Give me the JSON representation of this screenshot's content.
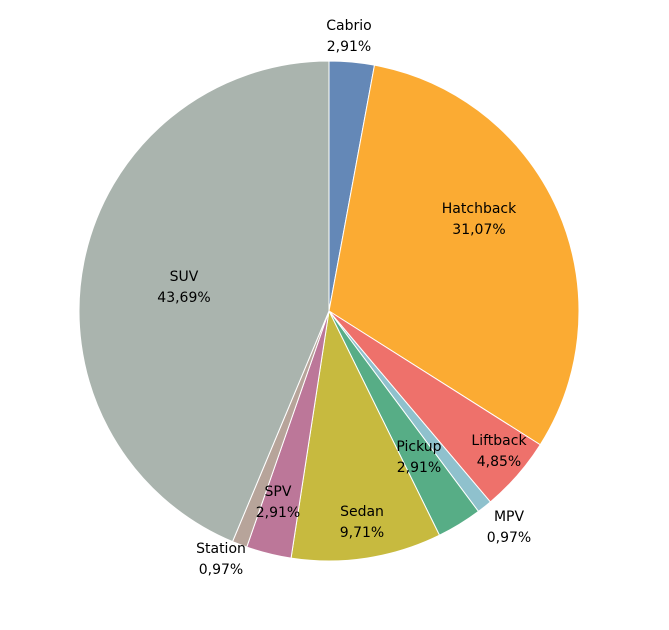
{
  "chart_data": {
    "type": "pie",
    "title": "",
    "start_angle_deg": 0,
    "direction": "clockwise",
    "slices": [
      {
        "label": "Cabrio",
        "value": 2.91,
        "value_label": "2,91%",
        "color": "#6488B7",
        "label_position": "outside"
      },
      {
        "label": "Hatchback",
        "value": 31.07,
        "value_label": "31,07%",
        "color": "#FBAB33",
        "label_position": "inside"
      },
      {
        "label": "Liftback",
        "value": 4.85,
        "value_label": "4,85%",
        "color": "#EE716B",
        "label_position": "inside"
      },
      {
        "label": "MPV",
        "value": 0.97,
        "value_label": "0,97%",
        "color": "#8FC1CD",
        "label_position": "outside"
      },
      {
        "label": "Pickup",
        "value": 2.91,
        "value_label": "2,91%",
        "color": "#57AD86",
        "label_position": "inside"
      },
      {
        "label": "Sedan",
        "value": 9.71,
        "value_label": "9,71%",
        "color": "#C7BA3F",
        "label_position": "inside"
      },
      {
        "label": "SPV",
        "value": 2.91,
        "value_label": "2,91%",
        "color": "#BC7799",
        "label_position": "inside"
      },
      {
        "label": "Station",
        "value": 0.97,
        "value_label": "0,97%",
        "color": "#B7A49A",
        "label_position": "outside"
      },
      {
        "label": "SUV",
        "value": 43.69,
        "value_label": "43,69%",
        "color": "#AAB4AE",
        "label_position": "inside"
      }
    ]
  }
}
